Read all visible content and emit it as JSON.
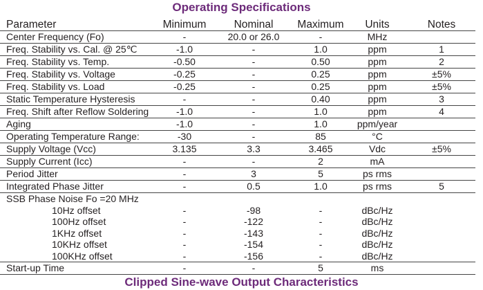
{
  "title": "Operating Specifications",
  "next_title": "Clipped Sine-wave Output Characteristics",
  "headers": [
    "Parameter",
    "Minimum",
    "Nominal",
    "Maximum",
    "Units",
    "Notes"
  ],
  "rows": [
    [
      "Center Frequency (Fo)",
      "-",
      "20.0 or 26.0",
      "-",
      "MHz",
      ""
    ],
    [
      "Freq. Stability vs. Cal. @ 25℃",
      "-1.0",
      "-",
      "1.0",
      "ppm",
      "1"
    ],
    [
      "Freq. Stability vs. Temp.",
      "-0.50",
      "-",
      "0.50",
      "ppm",
      "2"
    ],
    [
      "Freq. Stability vs. Voltage",
      "-0.25",
      "-",
      "0.25",
      "ppm",
      "±5%"
    ],
    [
      "Freq. Stability vs. Load",
      "-0.25",
      "-",
      "0.25",
      "ppm",
      "±5%"
    ],
    [
      "Static Temperature Hysteresis",
      "-",
      "-",
      "0.40",
      "ppm",
      "3"
    ],
    [
      "Freq. Shift after Reflow Soldering",
      "-1.0",
      "-",
      "1.0",
      "ppm",
      "4"
    ],
    [
      "Aging",
      "-1.0",
      "-",
      "1.0",
      "ppm/year",
      ""
    ],
    [
      "Operating Temperature Range:",
      "-30",
      "-",
      "85",
      "°C",
      ""
    ],
    [
      "Supply Voltage (Vcc)",
      "3.135",
      "3.3",
      "3.465",
      "Vdc",
      "±5%"
    ],
    [
      "Supply Current (Icc)",
      "-",
      "-",
      "2",
      "mA",
      ""
    ],
    [
      "Period Jitter",
      "-",
      "3",
      "5",
      "ps rms",
      ""
    ],
    [
      "Integrated Phase Jitter",
      "-",
      "0.5",
      "1.0",
      "ps rms",
      "5"
    ]
  ],
  "ssb": {
    "label": "SSB Phase Noise Fo =20 MHz",
    "rows": [
      [
        "10Hz offset",
        "-",
        "-98",
        "-",
        "dBc/Hz",
        ""
      ],
      [
        "100Hz offset",
        "-",
        "-122",
        "-",
        "dBc/Hz",
        ""
      ],
      [
        "1KHz offset",
        "-",
        "-143",
        "-",
        "dBc/Hz",
        ""
      ],
      [
        "10KHz offset",
        "-",
        "-154",
        "-",
        "dBc/Hz",
        ""
      ],
      [
        "100KHz offset",
        "-",
        "-156",
        "-",
        "dBc/Hz",
        ""
      ]
    ]
  },
  "startup": [
    "Start-up Time",
    "-",
    "-",
    "5",
    "ms",
    ""
  ]
}
